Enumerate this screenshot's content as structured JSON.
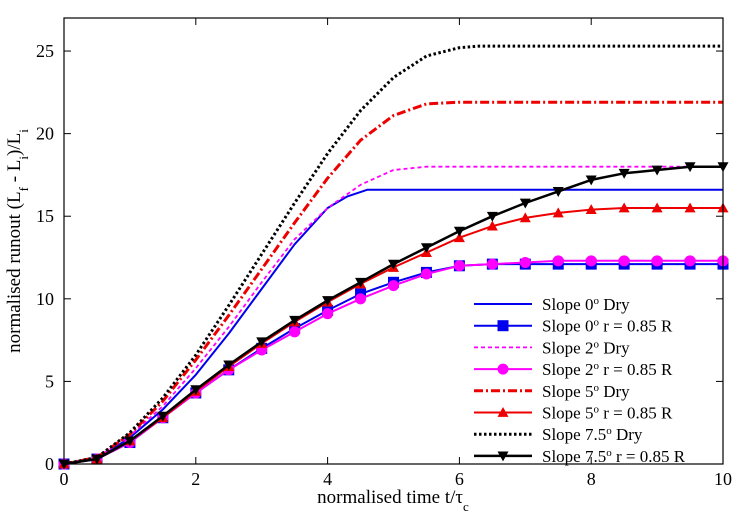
{
  "chart_data": {
    "type": "line",
    "xlabel": "normalised time t/τ",
    "xlabel_sub": "c",
    "ylabel_parts": [
      "normalised runout (L",
      "f",
      " - L",
      "i",
      ")/L",
      "i"
    ],
    "xlim": [
      0,
      10
    ],
    "ylim": [
      0,
      27
    ],
    "xticks": [
      0,
      2,
      4,
      6,
      8,
      10
    ],
    "yticks": [
      0,
      5,
      10,
      15,
      20,
      25
    ],
    "grid": false,
    "legend_position": "bottom-right",
    "series": [
      {
        "name": "Slope 0° Dry",
        "legend": [
          "Slope 0",
          "o",
          "    Dry"
        ],
        "color": "#0000ee",
        "dash": "",
        "width": 2,
        "marker": "none",
        "x": [
          0,
          0.5,
          1,
          1.5,
          2,
          2.5,
          3,
          3.5,
          4,
          4.3,
          4.6,
          5,
          6,
          7,
          8,
          9,
          10
        ],
        "y": [
          0,
          0.3,
          1.6,
          3.3,
          5.4,
          7.9,
          10.6,
          13.3,
          15.5,
          16.2,
          16.6,
          16.6,
          16.6,
          16.6,
          16.6,
          16.6,
          16.6
        ]
      },
      {
        "name": "Slope 0° r = 0.85 R",
        "legend": [
          "Slope 0",
          "o",
          "    r = 0.85 R"
        ],
        "color": "#0000ee",
        "dash": "",
        "width": 2,
        "marker": "square",
        "x": [
          0,
          0.5,
          1,
          1.5,
          2,
          2.5,
          3,
          3.5,
          4,
          4.5,
          5,
          5.5,
          6,
          6.5,
          7,
          7.5,
          8,
          8.5,
          9,
          9.5,
          10
        ],
        "y": [
          0,
          0.3,
          1.3,
          2.8,
          4.3,
          5.7,
          7.0,
          8.2,
          9.3,
          10.3,
          11.0,
          11.6,
          12.0,
          12.1,
          12.1,
          12.1,
          12.1,
          12.1,
          12.1,
          12.1,
          12.1
        ]
      },
      {
        "name": "Slope 2° Dry",
        "legend": [
          "Slope 2",
          "o",
          " Dry"
        ],
        "color": "#ff00ff",
        "dash": "4 3",
        "width": 1.8,
        "marker": "none",
        "x": [
          0,
          0.5,
          1,
          1.5,
          2,
          2.5,
          3,
          3.5,
          4,
          4.5,
          5,
          5.5,
          6,
          7,
          8,
          9,
          10
        ],
        "y": [
          0,
          0.4,
          1.7,
          3.5,
          5.8,
          8.3,
          11.0,
          13.6,
          15.5,
          16.9,
          17.8,
          18.0,
          18.0,
          18.0,
          18.0,
          18.0,
          18.0
        ]
      },
      {
        "name": "Slope 2° r = 0.85 R",
        "legend": [
          "Slope 2",
          "o",
          " r = 0.85 R"
        ],
        "color": "#ff00ff",
        "dash": "",
        "width": 2,
        "marker": "circle",
        "x": [
          0,
          0.5,
          1,
          1.5,
          2,
          2.5,
          3,
          3.5,
          4,
          4.5,
          5,
          5.5,
          6,
          6.5,
          7,
          7.5,
          8,
          8.5,
          9,
          9.5,
          10
        ],
        "y": [
          0,
          0.3,
          1.3,
          2.8,
          4.3,
          5.7,
          6.9,
          8.0,
          9.1,
          10.0,
          10.8,
          11.5,
          12.0,
          12.1,
          12.2,
          12.3,
          12.3,
          12.3,
          12.3,
          12.3,
          12.3
        ]
      },
      {
        "name": "Slope 5° Dry",
        "legend": [
          "Slope 5",
          "o",
          "    Dry"
        ],
        "color": "#ee0000",
        "dash": "9 3 2 3",
        "width": 3,
        "marker": "none",
        "x": [
          0,
          0.5,
          1,
          1.5,
          2,
          2.5,
          3,
          3.5,
          4,
          4.5,
          5,
          5.5,
          6,
          7,
          8,
          9,
          10
        ],
        "y": [
          0,
          0.4,
          1.8,
          3.8,
          6.3,
          9.0,
          11.8,
          14.6,
          17.3,
          19.6,
          21.1,
          21.8,
          21.9,
          21.9,
          21.9,
          21.9,
          21.9
        ]
      },
      {
        "name": "Slope 5° r = 0.85 R",
        "legend": [
          "Slope 5",
          "o",
          "    r = 0.85 R"
        ],
        "color": "#ee0000",
        "dash": "",
        "width": 2,
        "marker": "triangle-up",
        "x": [
          0,
          0.5,
          1,
          1.5,
          2,
          2.5,
          3,
          3.5,
          4,
          4.5,
          5,
          5.5,
          6,
          6.5,
          7,
          7.5,
          8,
          8.5,
          9,
          9.5,
          10
        ],
        "y": [
          0,
          0.3,
          1.4,
          2.8,
          4.4,
          5.9,
          7.3,
          8.6,
          9.8,
          10.9,
          11.9,
          12.8,
          13.7,
          14.4,
          14.9,
          15.2,
          15.4,
          15.5,
          15.5,
          15.5,
          15.5
        ]
      },
      {
        "name": "Slope 7.5° Dry",
        "legend": [
          "Slope 7.5",
          "o",
          " Dry"
        ],
        "color": "#000000",
        "dash": "2.5 2.5",
        "width": 3,
        "marker": "none",
        "x": [
          0,
          0.5,
          1,
          1.5,
          2,
          2.5,
          3,
          3.5,
          4,
          4.5,
          5,
          5.5,
          6,
          6.3,
          7,
          8,
          9,
          10
        ],
        "y": [
          0,
          0.4,
          1.9,
          4.0,
          6.6,
          9.6,
          12.7,
          15.8,
          18.8,
          21.4,
          23.4,
          24.7,
          25.2,
          25.3,
          25.3,
          25.3,
          25.3,
          25.3
        ]
      },
      {
        "name": "Slope 7.5° r = 0.85 R",
        "legend": [
          "Slope 7.5",
          "o",
          " r = 0.85 R"
        ],
        "color": "#000000",
        "dash": "",
        "width": 2.5,
        "marker": "triangle-down",
        "x": [
          0,
          0.5,
          1,
          1.5,
          2,
          2.5,
          3,
          3.5,
          4,
          4.5,
          5,
          5.5,
          6,
          6.5,
          7,
          7.5,
          8,
          8.5,
          9,
          9.5,
          10
        ],
        "y": [
          0,
          0.3,
          1.4,
          2.9,
          4.5,
          6.0,
          7.4,
          8.7,
          9.9,
          11.0,
          12.1,
          13.1,
          14.1,
          15.0,
          15.8,
          16.5,
          17.2,
          17.6,
          17.8,
          18.0,
          18.0
        ]
      }
    ]
  }
}
